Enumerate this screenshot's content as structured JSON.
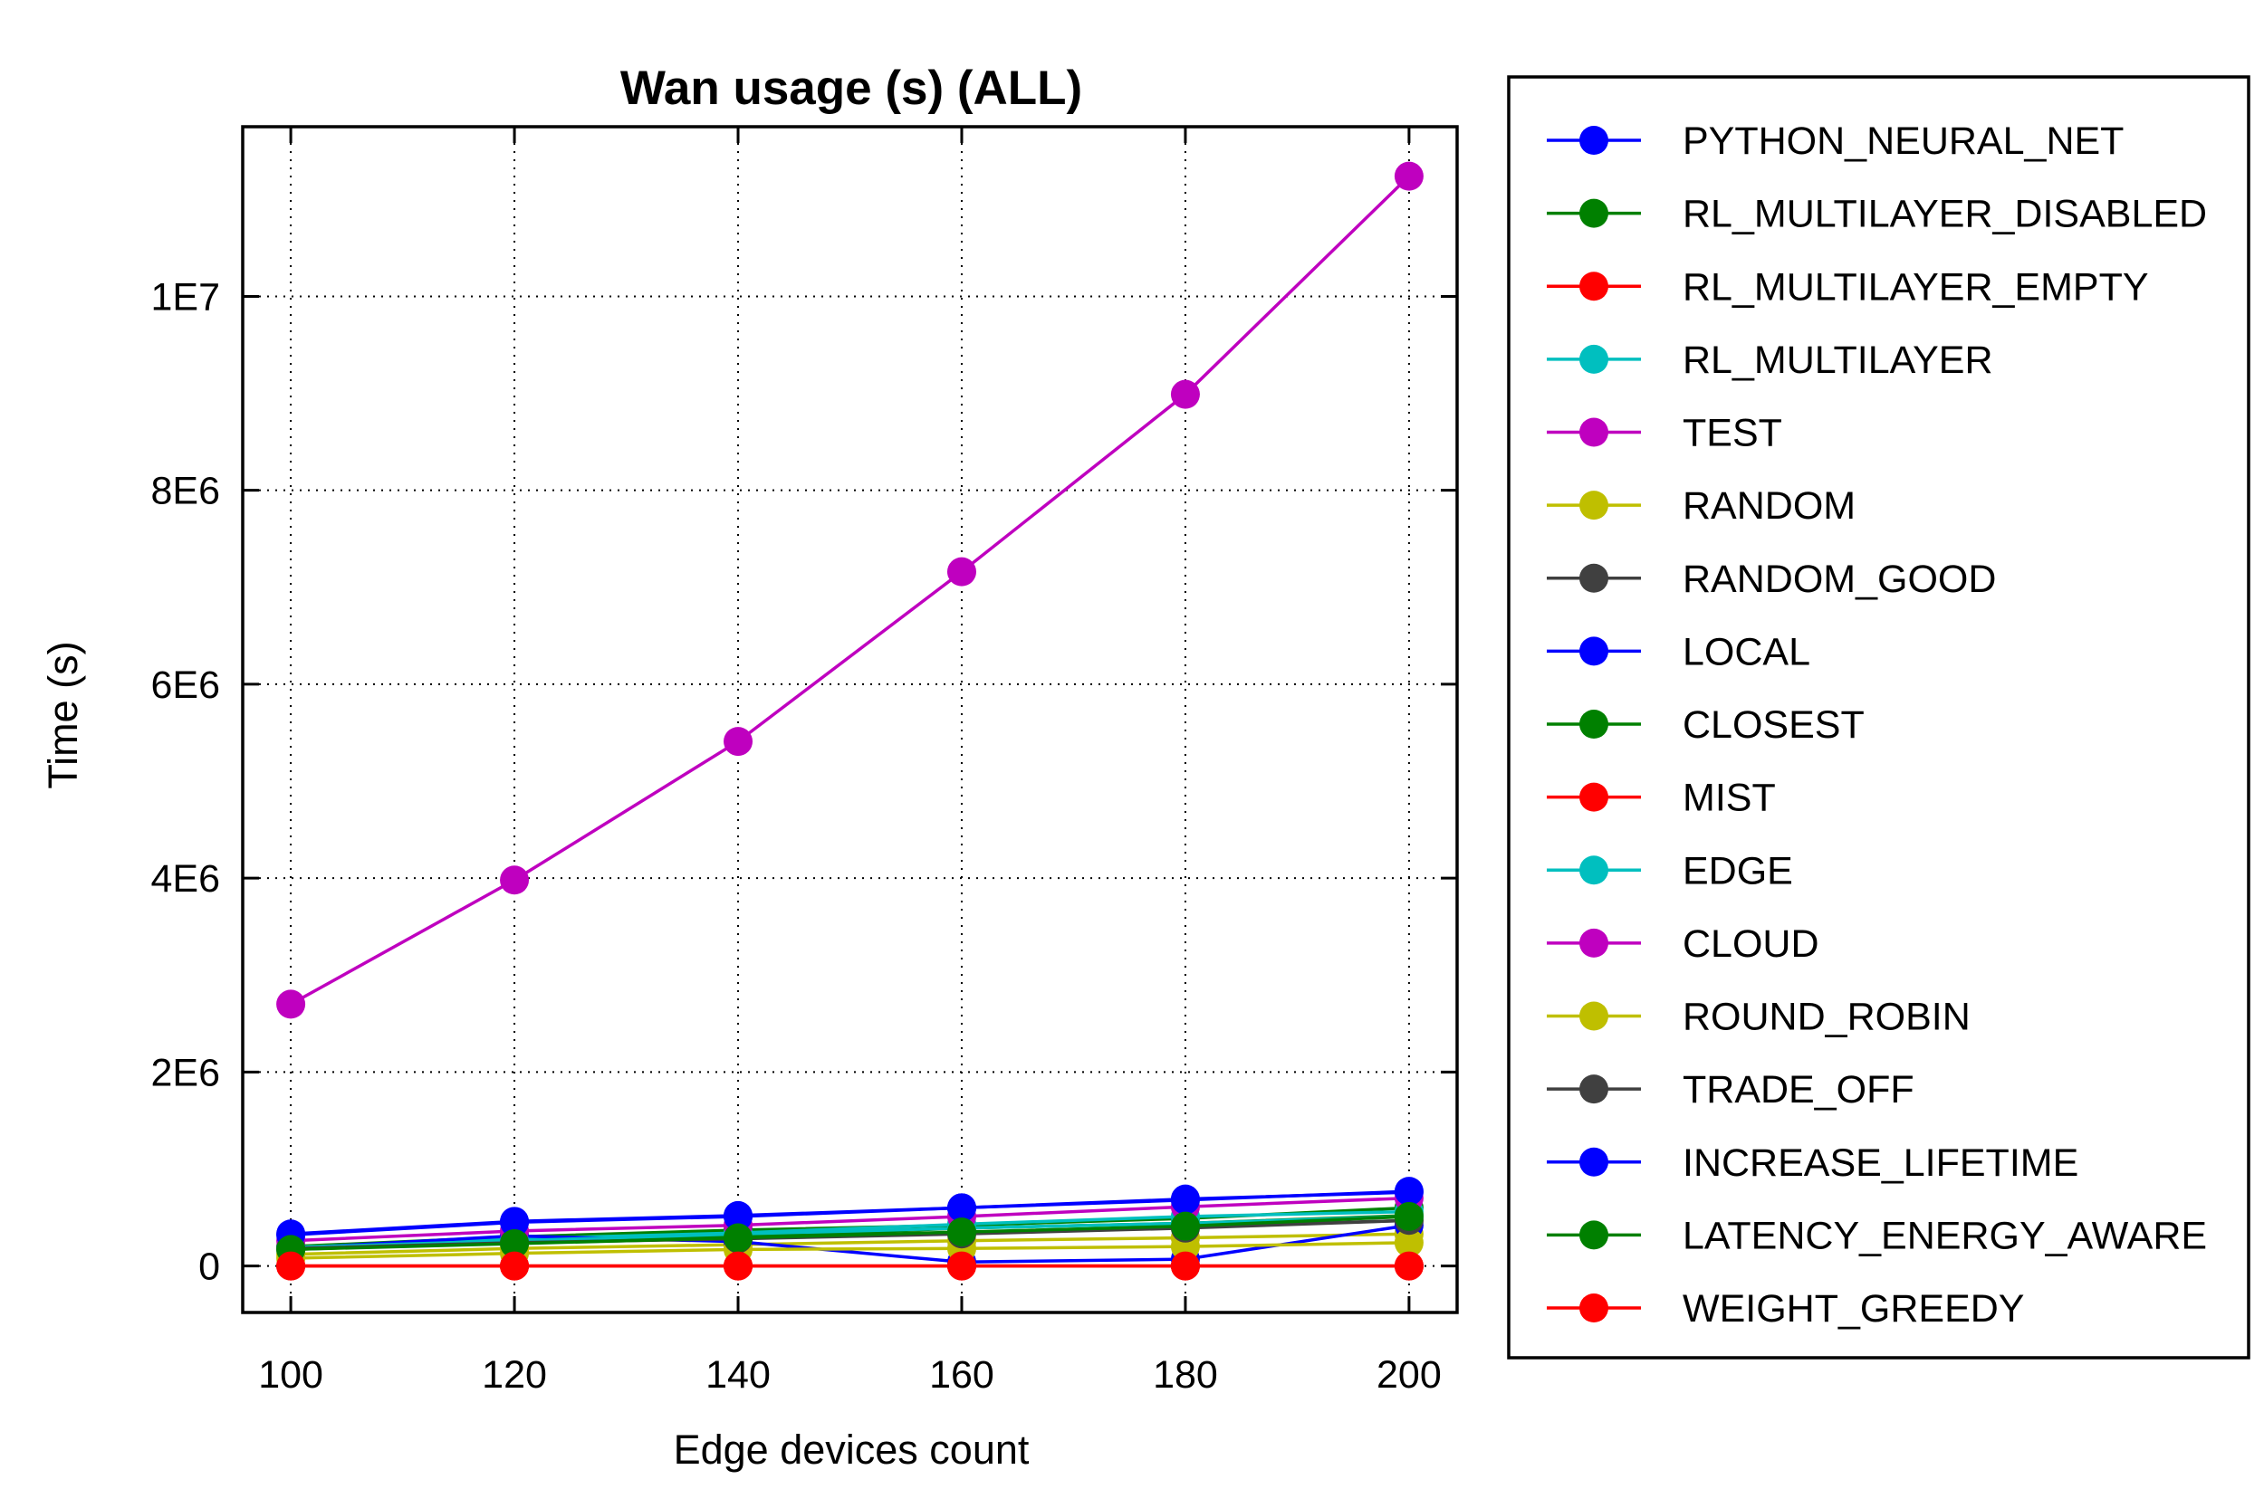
{
  "chart_data": {
    "type": "line",
    "title": "Wan usage (s) (ALL)",
    "xlabel": "Edge devices count",
    "ylabel": "Time (s)",
    "x": [
      100,
      120,
      140,
      160,
      180,
      200
    ],
    "xticks": [
      "100",
      "120",
      "140",
      "160",
      "180",
      "200"
    ],
    "xlim": [
      95.7,
      204.3
    ],
    "ylim": [
      -480000,
      11750000
    ],
    "yticks": [
      {
        "value": 0,
        "label": "0"
      },
      {
        "value": 2000000,
        "label": "2E6"
      },
      {
        "value": 4000000,
        "label": "4E6"
      },
      {
        "value": 6000000,
        "label": "6E6"
      },
      {
        "value": 8000000,
        "label": "8E6"
      },
      {
        "value": 10000000,
        "label": "1E7"
      }
    ],
    "grid": true,
    "legend_position": "right, outside plot",
    "series": [
      {
        "name": "PYTHON_NEURAL_NET",
        "color": "#0000ff",
        "values": [
          330000,
          460000,
          520000,
          600000,
          690000,
          760000
        ]
      },
      {
        "name": "RL_MULTILAYER_DISABLED",
        "color": "#008000",
        "values": [
          200000,
          300000,
          370000,
          420000,
          490000,
          600000
        ]
      },
      {
        "name": "RL_MULTILAYER_EMPTY",
        "color": "#ff0000",
        "values": [
          0,
          0,
          0,
          0,
          0,
          0
        ]
      },
      {
        "name": "RL_MULTILAYER",
        "color": "#00bfbf",
        "values": [
          190000,
          280000,
          340000,
          430000,
          510000,
          560000
        ]
      },
      {
        "name": "TEST",
        "color": "#bf00bf",
        "values": [
          2700000,
          3980000,
          5410000,
          7160000,
          8990000,
          11240000
        ]
      },
      {
        "name": "RANDOM",
        "color": "#bfbf00",
        "values": [
          120000,
          180000,
          220000,
          260000,
          290000,
          330000
        ]
      },
      {
        "name": "RANDOM_GOOD",
        "color": "#404040",
        "values": [
          190000,
          240000,
          290000,
          340000,
          400000,
          470000
        ]
      },
      {
        "name": "LOCAL",
        "color": "#0000ff",
        "values": [
          180000,
          310000,
          250000,
          40000,
          70000,
          420000
        ]
      },
      {
        "name": "CLOSEST",
        "color": "#008000",
        "values": [
          170000,
          240000,
          300000,
          390000,
          440000,
          520000
        ]
      },
      {
        "name": "MIST",
        "color": "#ff0000",
        "values": [
          0,
          0,
          0,
          0,
          0,
          0
        ]
      },
      {
        "name": "EDGE",
        "color": "#00bfbf",
        "values": [
          190000,
          260000,
          330000,
          390000,
          440000,
          510000
        ]
      },
      {
        "name": "CLOUD",
        "color": "#bf00bf",
        "values": [
          260000,
          360000,
          420000,
          510000,
          610000,
          700000
        ]
      },
      {
        "name": "ROUND_ROBIN",
        "color": "#bfbf00",
        "values": [
          80000,
          130000,
          170000,
          180000,
          200000,
          240000
        ]
      },
      {
        "name": "TRADE_OFF",
        "color": "#404040",
        "values": [
          180000,
          240000,
          280000,
          330000,
          390000,
          470000
        ]
      },
      {
        "name": "INCREASE_LIFETIME",
        "color": "#0000ff",
        "values": [
          320000,
          450000,
          510000,
          600000,
          680000,
          770000
        ]
      },
      {
        "name": "LATENCY_ENERGY_AWARE",
        "color": "#008000",
        "values": [
          170000,
          230000,
          290000,
          350000,
          410000,
          510000
        ]
      },
      {
        "name": "WEIGHT_GREEDY",
        "color": "#ff0000",
        "values": [
          0,
          0,
          0,
          0,
          0,
          0
        ]
      }
    ]
  }
}
